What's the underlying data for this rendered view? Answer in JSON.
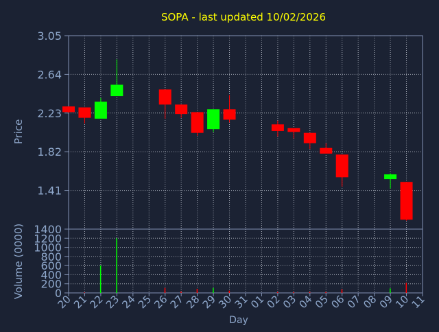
{
  "chart_data": {
    "type": "candlestick",
    "title": "SOPA - last updated 10/02/2026",
    "xlabel": "Day",
    "price_panel": {
      "ylabel": "Price",
      "ylim": [
        1.0,
        3.05
      ],
      "yticks": [
        1.41,
        1.82,
        2.23,
        2.64,
        3.05
      ],
      "ytick_labels": [
        "1.41",
        "1.82",
        "2.23",
        "2.64",
        "3.05"
      ]
    },
    "volume_panel": {
      "ylabel": "Volume (0000)",
      "ylim": [
        0,
        1400
      ],
      "yticks": [
        0,
        200,
        400,
        600,
        800,
        1000,
        1200,
        1400
      ],
      "ytick_labels": [
        "0",
        "200",
        "400",
        "600",
        "800",
        "1000",
        "1200",
        "1400"
      ]
    },
    "x_labels": [
      "20",
      "21",
      "22",
      "23",
      "24",
      "25",
      "26",
      "27",
      "28",
      "29",
      "30",
      "31",
      "01",
      "02",
      "03",
      "04",
      "05",
      "06",
      "07",
      "08",
      "09",
      "10",
      "11"
    ],
    "candles": [
      {
        "x": 0,
        "open": 2.3,
        "high": 2.3,
        "low": 2.23,
        "close": 2.24,
        "volume": 0
      },
      {
        "x": 1,
        "open": 2.29,
        "high": 2.29,
        "low": 2.12,
        "close": 2.18,
        "volume": 10
      },
      {
        "x": 2,
        "open": 2.17,
        "high": 2.39,
        "low": 2.17,
        "close": 2.35,
        "volume": 600
      },
      {
        "x": 3,
        "open": 2.41,
        "high": 2.8,
        "low": 2.41,
        "close": 2.53,
        "volume": 1200
      },
      {
        "x": 6,
        "open": 2.48,
        "high": 2.48,
        "low": 2.17,
        "close": 2.32,
        "volume": 110
      },
      {
        "x": 7,
        "open": 2.32,
        "high": 2.32,
        "low": 2.18,
        "close": 2.22,
        "volume": 30
      },
      {
        "x": 8,
        "open": 2.24,
        "high": 2.24,
        "low": 1.99,
        "close": 2.02,
        "volume": 90
      },
      {
        "x": 9,
        "open": 2.06,
        "high": 2.27,
        "low": 2.03,
        "close": 2.27,
        "volume": 110
      },
      {
        "x": 10,
        "open": 2.27,
        "high": 2.42,
        "low": 2.13,
        "close": 2.16,
        "volume": 50
      },
      {
        "x": 13,
        "open": 2.11,
        "high": 2.15,
        "low": 1.98,
        "close": 2.04,
        "volume": 20
      },
      {
        "x": 14,
        "open": 2.07,
        "high": 2.07,
        "low": 1.96,
        "close": 2.03,
        "volume": 20
      },
      {
        "x": 15,
        "open": 2.02,
        "high": 2.02,
        "low": 1.85,
        "close": 1.91,
        "volume": 20
      },
      {
        "x": 16,
        "open": 1.86,
        "high": 1.91,
        "low": 1.8,
        "close": 1.8,
        "volume": 20
      },
      {
        "x": 17,
        "open": 1.79,
        "high": 1.79,
        "low": 1.45,
        "close": 1.55,
        "volume": 80
      },
      {
        "x": 20,
        "open": 1.53,
        "high": 1.59,
        "low": 1.43,
        "close": 1.58,
        "volume": 100
      },
      {
        "x": 21,
        "open": 1.5,
        "high": 1.5,
        "low": 1.09,
        "close": 1.1,
        "volume": 220
      }
    ],
    "up_color": "#00ff00",
    "down_color": "#ff0000",
    "grid": true
  },
  "colors": {
    "background": "#1b2233",
    "axis": "#8393b5",
    "label": "#8fa8cc",
    "title": "#ffff00",
    "grid": "#a6acb8"
  }
}
